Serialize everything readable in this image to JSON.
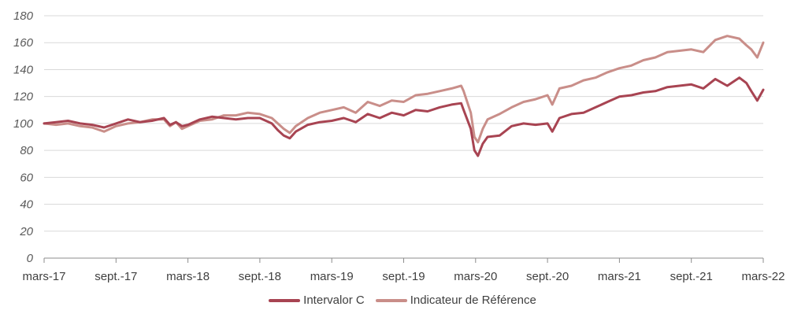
{
  "chart_data": {
    "type": "line",
    "title": "",
    "xlabel": "",
    "ylabel": "",
    "ylim": [
      0,
      180
    ],
    "yticks": [
      0,
      20,
      40,
      60,
      80,
      100,
      120,
      140,
      160,
      180
    ],
    "xlim": [
      0,
      60
    ],
    "xticks": [
      {
        "x": 0,
        "label": "mars-17"
      },
      {
        "x": 6,
        "label": "sept.-17"
      },
      {
        "x": 12,
        "label": "mars-18"
      },
      {
        "x": 18,
        "label": "sept.-18"
      },
      {
        "x": 24,
        "label": "mars-19"
      },
      {
        "x": 30,
        "label": "sept.-19"
      },
      {
        "x": 36,
        "label": "mars-20"
      },
      {
        "x": 42,
        "label": "sept.-20"
      },
      {
        "x": 48,
        "label": "mars-21"
      },
      {
        "x": 54,
        "label": "sept.-21"
      },
      {
        "x": 60,
        "label": "mars-22"
      }
    ],
    "grid": "horizontal",
    "legend_position": "bottom",
    "series": [
      {
        "name": "Intervalor C",
        "color": "#a84452",
        "x": [
          0,
          1,
          2,
          3,
          4,
          5,
          6,
          7,
          8,
          9,
          10,
          10.5,
          11,
          11.5,
          12,
          13,
          14,
          15,
          16,
          17,
          18,
          19,
          19.5,
          20,
          20.5,
          21,
          22,
          23,
          24,
          25,
          26,
          27,
          28,
          29,
          30,
          31,
          32,
          33,
          34,
          34.8,
          35,
          35.6,
          35.9,
          36.2,
          36.6,
          37,
          38,
          39,
          40,
          41,
          42,
          42.4,
          43,
          44,
          45,
          46,
          47,
          48,
          49,
          50,
          51,
          52,
          53,
          54,
          55,
          56,
          57,
          58,
          58.6,
          59,
          59.5,
          60
        ],
        "y": [
          100,
          101,
          102,
          100,
          99,
          97,
          100,
          103,
          101,
          102,
          104,
          99,
          101,
          98,
          99,
          103,
          105,
          104,
          103,
          104,
          104,
          100,
          95,
          91,
          89,
          94,
          99,
          101,
          102,
          104,
          101,
          107,
          104,
          108,
          106,
          110,
          109,
          112,
          114,
          115,
          110,
          96,
          80,
          76,
          85,
          90,
          91,
          98,
          100,
          99,
          100,
          94,
          104,
          107,
          108,
          112,
          116,
          120,
          121,
          123,
          124,
          127,
          128,
          129,
          126,
          133,
          128,
          134,
          130,
          124,
          117,
          125
        ]
      },
      {
        "name": "Indicateur de Référence",
        "color": "#c98e89",
        "x": [
          0,
          1,
          2,
          3,
          4,
          5,
          6,
          7,
          8,
          9,
          10,
          10.5,
          11,
          11.5,
          12,
          13,
          14,
          15,
          16,
          17,
          18,
          19,
          19.5,
          20,
          20.5,
          21,
          22,
          23,
          24,
          25,
          26,
          27,
          28,
          29,
          30,
          31,
          32,
          33,
          34,
          34.8,
          35,
          35.6,
          35.9,
          36.2,
          36.6,
          37,
          38,
          39,
          40,
          41,
          42,
          42.4,
          43,
          44,
          45,
          46,
          47,
          48,
          49,
          50,
          51,
          52,
          53,
          54,
          55,
          56,
          57,
          58,
          58.6,
          59,
          59.5,
          60
        ],
        "y": [
          100,
          99,
          100,
          98,
          97,
          94,
          98,
          100,
          101,
          103,
          103,
          98,
          101,
          96,
          98,
          102,
          103,
          106,
          106,
          108,
          107,
          104,
          100,
          96,
          93,
          98,
          104,
          108,
          110,
          112,
          108,
          116,
          113,
          117,
          116,
          121,
          122,
          124,
          126,
          128,
          124,
          108,
          90,
          86,
          96,
          103,
          107,
          112,
          116,
          118,
          121,
          114,
          126,
          128,
          132,
          134,
          138,
          141,
          143,
          147,
          149,
          153,
          154,
          155,
          153,
          162,
          165,
          163,
          158,
          155,
          149,
          160
        ]
      }
    ]
  }
}
